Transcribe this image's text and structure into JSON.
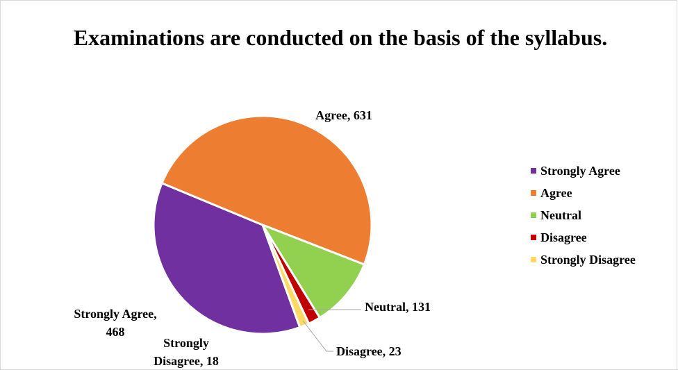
{
  "chart_data": {
    "type": "pie",
    "title": "Examinations are conducted on the basis of the syllabus.",
    "categories": [
      "Strongly Agree",
      "Agree",
      "Neutral",
      "Disagree",
      "Strongly Disagree"
    ],
    "values": [
      468,
      631,
      131,
      23,
      18
    ],
    "colors": [
      "#7030a0",
      "#ed7d31",
      "#92d050",
      "#c00000",
      "#ffd966"
    ],
    "data_labels": [
      [
        "Strongly Agree,",
        "468"
      ],
      [
        "Agree, 631"
      ],
      [
        "Neutral, 131"
      ],
      [
        "Disagree, 23"
      ],
      [
        "Strongly",
        "Disagree, 18"
      ]
    ],
    "legend": {
      "position": "right",
      "entries": [
        "Strongly Agree",
        "Agree",
        "Neutral",
        "Disagree",
        "Strongly Disagree"
      ]
    }
  }
}
